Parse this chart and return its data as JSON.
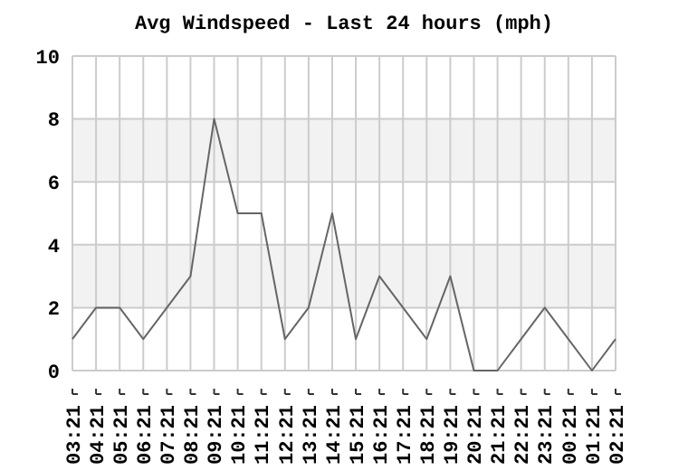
{
  "chart_data": {
    "type": "line",
    "title": "Avg Windspeed - Last 24 hours (mph)",
    "categories": [
      "03:21",
      "04:21",
      "05:21",
      "06:21",
      "07:21",
      "08:21",
      "09:21",
      "10:21",
      "11:21",
      "12:21",
      "13:21",
      "14:21",
      "15:21",
      "16:21",
      "17:21",
      "18:21",
      "19:21",
      "20:21",
      "21:21",
      "22:21",
      "23:21",
      "00:21",
      "01:21",
      "02:21"
    ],
    "series": [
      {
        "color": "#666666",
        "values": [
          1,
          2,
          2,
          1,
          2,
          3,
          8,
          5,
          5,
          1,
          2,
          5,
          1,
          3,
          2,
          1,
          3,
          0,
          0,
          1,
          2,
          1,
          0,
          1
        ]
      }
    ],
    "ylim": [
      0,
      10
    ],
    "yticks": [
      0,
      2,
      4,
      6,
      8,
      10
    ],
    "grid": true,
    "marker": "none",
    "line_style": "solid",
    "bands": [
      {
        "axis": "y",
        "from": 2,
        "to": 4,
        "color": "#f2f2f2"
      },
      {
        "axis": "y",
        "from": 6,
        "to": 8,
        "color": "#f2f2f2"
      }
    ]
  }
}
